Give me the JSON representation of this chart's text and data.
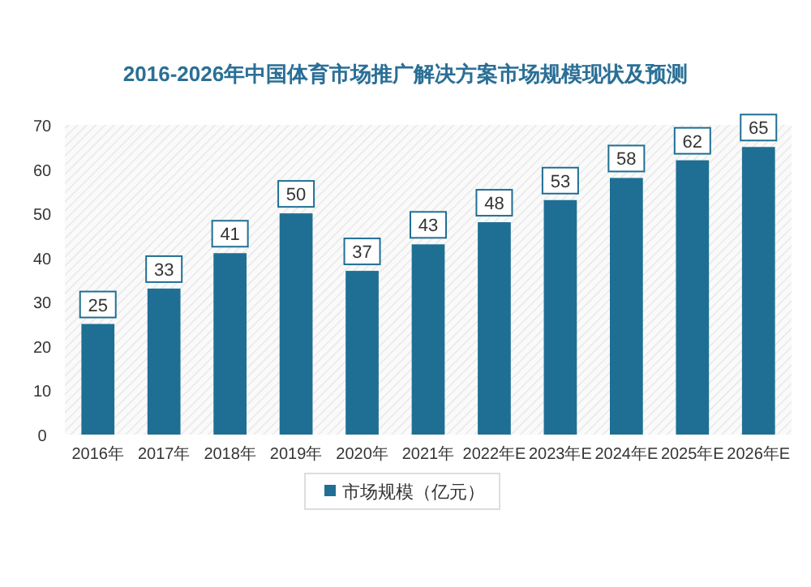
{
  "chart_data": {
    "type": "bar",
    "title": "2016-2026年中国体育市场推广解决方案市场规模现状及预测",
    "categories": [
      "2016年",
      "2017年",
      "2018年",
      "2019年",
      "2020年",
      "2021年",
      "2022年E",
      "2023年E",
      "2024年E",
      "2025年E",
      "2026年E"
    ],
    "series": [
      {
        "name": "市场规模（亿元）",
        "color": "#1f6f94",
        "values": [
          25,
          33,
          41,
          50,
          37,
          43,
          48,
          53,
          58,
          62,
          65
        ]
      }
    ],
    "ylim": [
      0,
      70
    ],
    "yticks": [
      0,
      10,
      20,
      30,
      40,
      50,
      60,
      70
    ],
    "data_labels": true,
    "legend": "bottom"
  }
}
